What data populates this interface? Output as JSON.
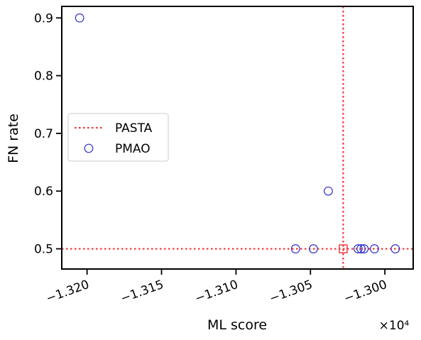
{
  "chart_data": {
    "type": "scatter",
    "xlabel": "ML score",
    "ylabel": "FN rate",
    "x_offset_label": "×10⁴",
    "xlim": [
      -1.3217,
      -1.2981
    ],
    "ylim": [
      0.465,
      0.92
    ],
    "x_ticks": [
      -1.32,
      -1.315,
      -1.31,
      -1.305,
      -1.3
    ],
    "x_tick_labels": [
      "−1.320",
      "−1.315",
      "−1.310",
      "−1.305",
      "−1.300"
    ],
    "y_ticks": [
      0.5,
      0.6,
      0.7,
      0.8,
      0.9
    ],
    "y_tick_labels": [
      "0.5",
      "0.6",
      "0.7",
      "0.8",
      "0.9"
    ],
    "legend": {
      "placement": "center-left",
      "entries": [
        {
          "label": "PASTA",
          "style": "dotted-line",
          "color": "#ee3333"
        },
        {
          "label": "PMAO",
          "style": "open-circle",
          "color": "#3333cc"
        }
      ]
    },
    "series": [
      {
        "name": "PMAO",
        "marker": "open-circle",
        "color": "#3333cc",
        "points": [
          {
            "x": -1.3205,
            "y": 0.9
          },
          {
            "x": -1.3038,
            "y": 0.6
          },
          {
            "x": -1.306,
            "y": 0.5
          },
          {
            "x": -1.3048,
            "y": 0.5
          },
          {
            "x": -1.3018,
            "y": 0.5
          },
          {
            "x": -1.3016,
            "y": 0.5
          },
          {
            "x": -1.3014,
            "y": 0.5
          },
          {
            "x": -1.3007,
            "y": 0.5
          },
          {
            "x": -1.2993,
            "y": 0.5
          }
        ]
      },
      {
        "name": "PASTA",
        "marker": "open-square",
        "color": "#ee3333",
        "points": [
          {
            "x": -1.3028,
            "y": 0.5
          }
        ],
        "reference_lines": {
          "x": -1.3028,
          "y": 0.5
        }
      }
    ]
  }
}
